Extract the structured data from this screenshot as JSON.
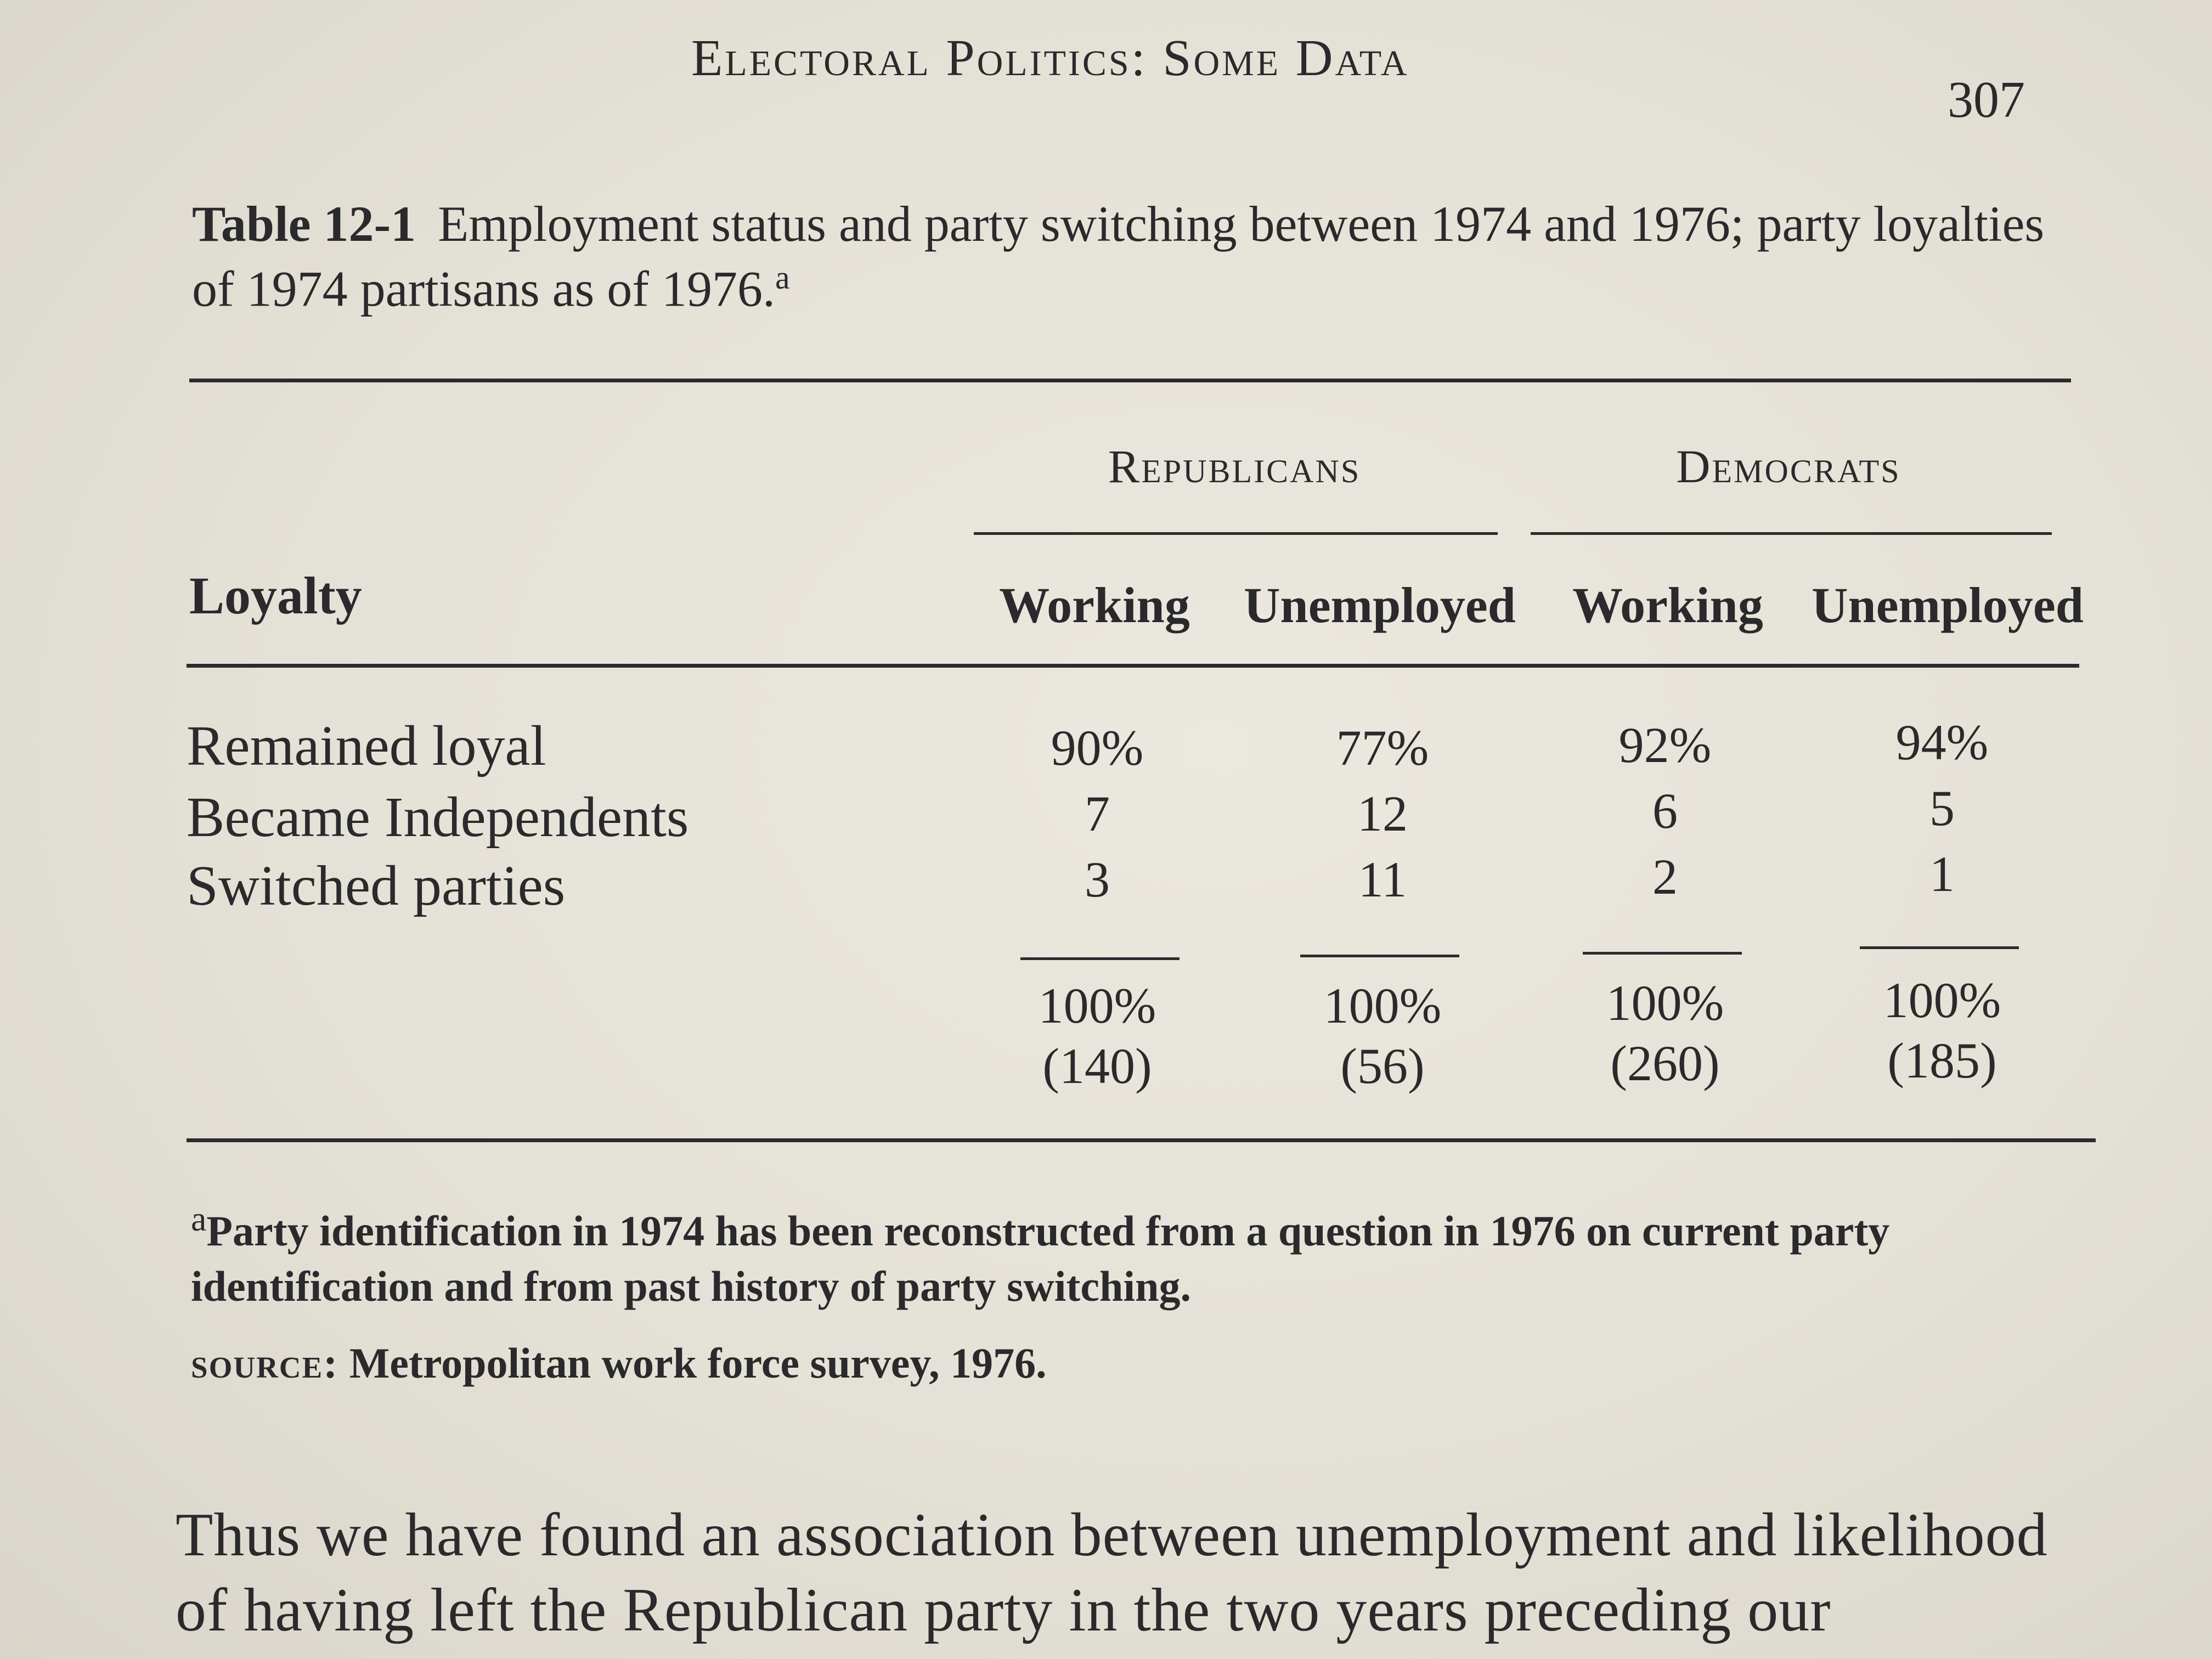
{
  "header": {
    "running_head": "Electoral Politics: Some Data",
    "page_number": "307"
  },
  "table": {
    "label": "Table 12-1",
    "caption": "Employment status and party switching between 1974 and 1976; party loyalties of 1974 partisans as of 1976.",
    "caption_note_mark": "a",
    "stub_header": "Loyalty",
    "groups": [
      "Republicans",
      "Democrats"
    ],
    "columns": [
      "Working",
      "Unemployed",
      "Working",
      "Unemployed"
    ],
    "rows": [
      {
        "label": "Remained loyal",
        "values": [
          "90%",
          "77%",
          "92%",
          "94%"
        ]
      },
      {
        "label": "Became Independents",
        "values": [
          "7",
          "12",
          "6",
          "5"
        ]
      },
      {
        "label": "Switched parties",
        "values": [
          "3",
          "11",
          "2",
          "1"
        ]
      }
    ],
    "totals": [
      "100%",
      "100%",
      "100%",
      "100%"
    ],
    "counts": [
      "(140)",
      "(56)",
      "(260)",
      "(185)"
    ]
  },
  "footnote": {
    "mark": "a",
    "text": "Party identification in 1974 has been reconstructed from a question in 1976 on current party identification and from past history of party switching."
  },
  "source": {
    "label": "source:",
    "text": "Metropolitan work force survey, 1976."
  },
  "body": {
    "text": "Thus we have found an association between unemployment and likelihood of having left the Republican party in the two years preceding our"
  }
}
